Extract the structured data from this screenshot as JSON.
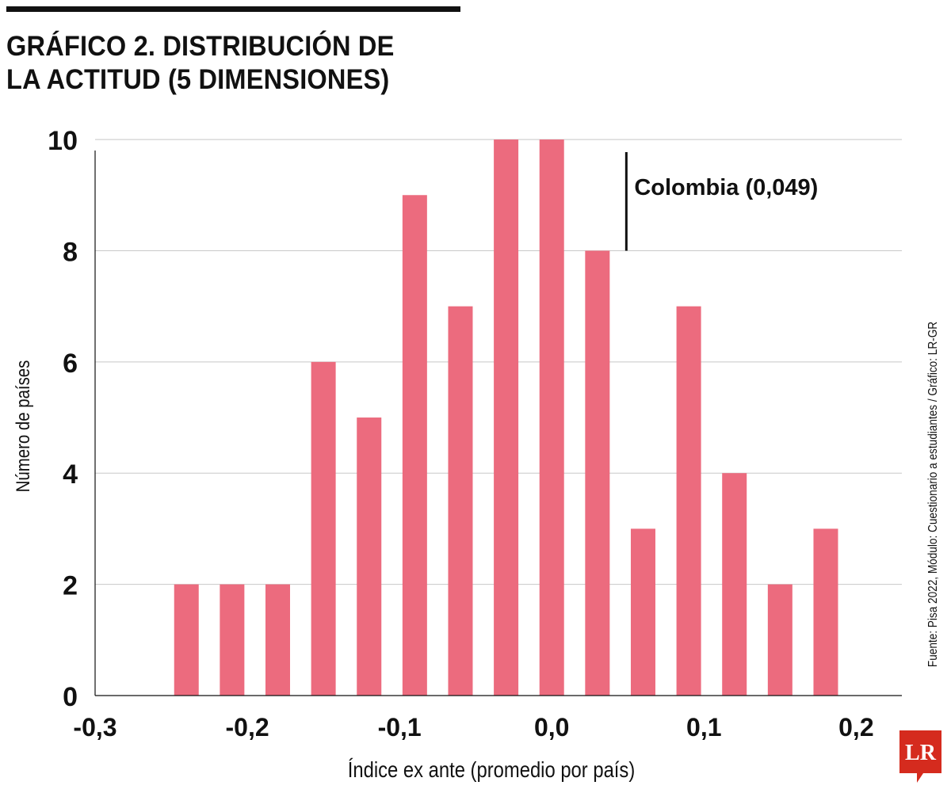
{
  "title_lines": [
    "GRÁFICO 2. DISTRIBUCIÓN DE",
    "LA ACTITUD (5 DIMENSIONES)"
  ],
  "source": "Fuente: Pisa 2022, Módulo: Cuestionario a estudiantes  / Gráfico: LR-GR",
  "logo_text": "LR",
  "colors": {
    "bar": "#ec6b7e",
    "grid": "#c8c8c8",
    "axis": "#111111",
    "text": "#111111",
    "logo": "#d52b1e"
  },
  "chart_data": {
    "type": "bar",
    "title": "GRÁFICO 2. DISTRIBUCIÓN DE LA ACTITUD (5 DIMENSIONES)",
    "xlabel": "Índice ex ante (promedio por país)",
    "ylabel": "Número de países",
    "x": [
      -0.24,
      -0.21,
      -0.18,
      -0.15,
      -0.12,
      -0.09,
      -0.06,
      -0.03,
      0.0,
      0.03,
      0.06,
      0.09,
      0.12,
      0.15,
      0.18
    ],
    "values": [
      2,
      2,
      2,
      6,
      5,
      9,
      7,
      10,
      10,
      8,
      3,
      7,
      4,
      2,
      3
    ],
    "xlim": [
      -0.3,
      0.23
    ],
    "ylim": [
      0,
      10.4
    ],
    "xticks": [
      -0.3,
      -0.2,
      -0.1,
      0.0,
      0.1,
      0.2
    ],
    "xtick_labels": [
      "-0,3",
      "-0,2",
      "-0,1",
      "0,0",
      "0,1",
      "0,2"
    ],
    "yticks": [
      0,
      2,
      4,
      6,
      8,
      10
    ],
    "ytick_labels": [
      "0",
      "2",
      "4",
      "6",
      "8",
      "10"
    ],
    "grid": true,
    "legend": false,
    "annotation": {
      "x": 0.049,
      "y_from": 8,
      "label": "Colombia (0,049)"
    }
  }
}
